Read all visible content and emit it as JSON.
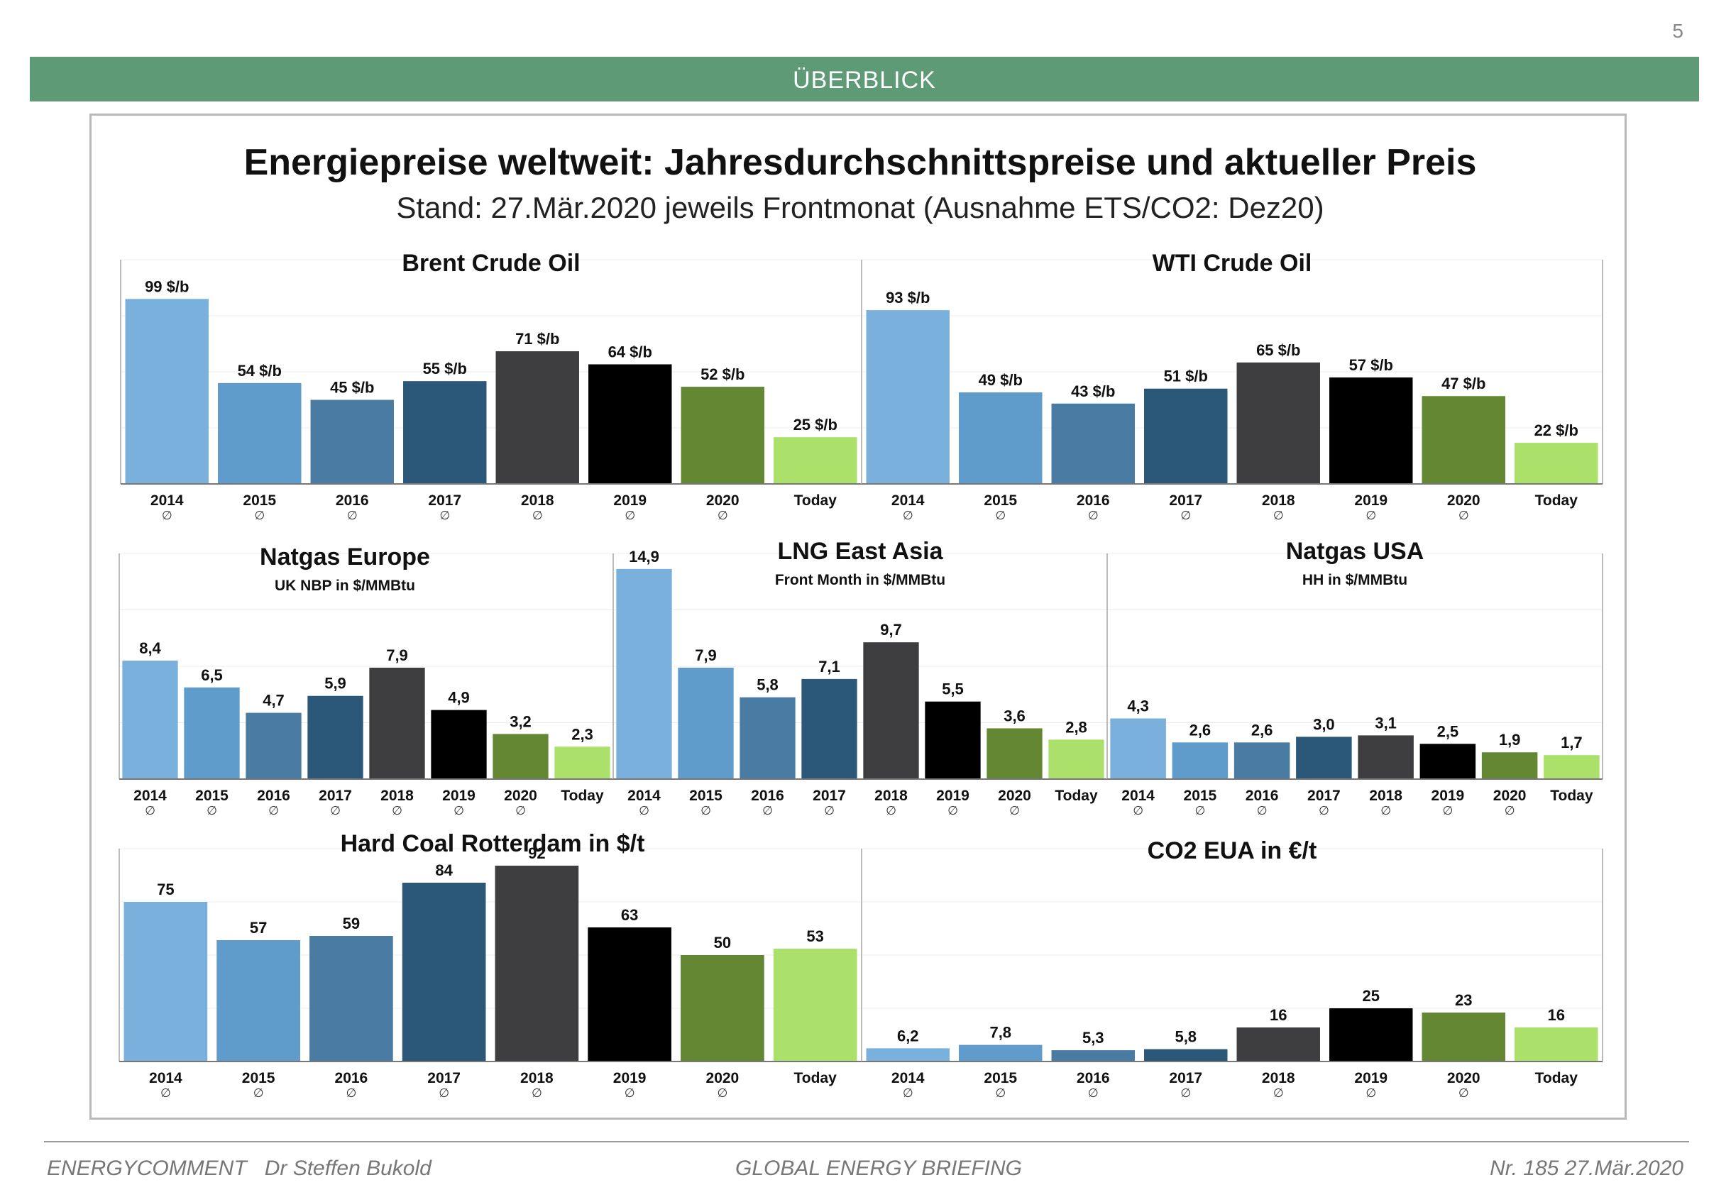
{
  "page_number": "5",
  "banner": "ÜBERBLICK",
  "title": "Energiepreise weltweit: Jahresdurchschnittspreise und aktueller Preis",
  "subtitle": "Stand: 27.Mär.2020 jeweils Frontmonat (Ausnahme ETS/CO2: Dez20)",
  "footer": {
    "left_brand": "ENERGYCOMMENT",
    "left_author": "Dr Steffen Bukold",
    "center": "GLOBAL ENERGY BRIEFING",
    "right": "Nr. 185 27.Mär.2020"
  },
  "colors": [
    "#79b0dc",
    "#5f9bcb",
    "#4a7ca3",
    "#2b5878",
    "#3e3e40",
    "#000000",
    "#648734",
    "#abe06a"
  ],
  "average_symbol": "∅",
  "chart_data": [
    {
      "type": "bar",
      "title": "Brent Crude Oil",
      "subtitle": "",
      "categories": [
        "2014",
        "2015",
        "2016",
        "2017",
        "2018",
        "2019",
        "2020",
        "Today"
      ],
      "values": [
        99,
        54,
        45,
        55,
        71,
        64,
        52,
        25
      ],
      "labels": [
        "99 $/b",
        "54 $/b",
        "45 $/b",
        "55 $/b",
        "71 $/b",
        "64 $/b",
        "52 $/b",
        "25 $/b"
      ],
      "ylim": [
        0,
        120
      ]
    },
    {
      "type": "bar",
      "title": "WTI Crude Oil",
      "subtitle": "",
      "categories": [
        "2014",
        "2015",
        "2016",
        "2017",
        "2018",
        "2019",
        "2020",
        "Today"
      ],
      "values": [
        93,
        49,
        43,
        51,
        65,
        57,
        47,
        22
      ],
      "labels": [
        "93 $/b",
        "49 $/b",
        "43 $/b",
        "51 $/b",
        "65 $/b",
        "57 $/b",
        "47 $/b",
        "22 $/b"
      ],
      "ylim": [
        0,
        120
      ]
    },
    {
      "type": "bar",
      "title": "Natgas Europe",
      "subtitle": "UK NBP in $/MMBtu",
      "categories": [
        "2014",
        "2015",
        "2016",
        "2017",
        "2018",
        "2019",
        "2020",
        "Today"
      ],
      "values": [
        8.4,
        6.5,
        4.7,
        5.9,
        7.9,
        4.9,
        3.2,
        2.3
      ],
      "labels": [
        "8,4",
        "6,5",
        "4,7",
        "5,9",
        "7,9",
        "4,9",
        "3,2",
        "2,3"
      ],
      "ylim": [
        0,
        16
      ]
    },
    {
      "type": "bar",
      "title": "LNG East Asia",
      "subtitle": "Front Month in $/MMBtu",
      "categories": [
        "2014",
        "2015",
        "2016",
        "2017",
        "2018",
        "2019",
        "2020",
        "Today"
      ],
      "values": [
        14.9,
        7.9,
        5.8,
        7.1,
        9.7,
        5.5,
        3.6,
        2.8
      ],
      "labels": [
        "14,9",
        "7,9",
        "5,8",
        "7,1",
        "9,7",
        "5,5",
        "3,6",
        "2,8"
      ],
      "ylim": [
        0,
        16
      ]
    },
    {
      "type": "bar",
      "title": "Natgas USA",
      "subtitle": "HH in $/MMBtu",
      "categories": [
        "2014",
        "2015",
        "2016",
        "2017",
        "2018",
        "2019",
        "2020",
        "Today"
      ],
      "values": [
        4.3,
        2.6,
        2.6,
        3.0,
        3.1,
        2.5,
        1.9,
        1.7
      ],
      "labels": [
        "4,3",
        "2,6",
        "2,6",
        "3,0",
        "3,1",
        "2,5",
        "1,9",
        "1,7"
      ],
      "ylim": [
        0,
        16
      ]
    },
    {
      "type": "bar",
      "title": "Hard Coal Rotterdam in $/t",
      "subtitle": "",
      "categories": [
        "2014",
        "2015",
        "2016",
        "2017",
        "2018",
        "2019",
        "2020",
        "Today"
      ],
      "values": [
        75,
        57,
        59,
        84,
        92,
        63,
        50,
        53
      ],
      "labels": [
        "75",
        "57",
        "59",
        "84",
        "92",
        "63",
        "50",
        "53"
      ],
      "ylim": [
        0,
        100
      ]
    },
    {
      "type": "bar",
      "title": "CO2 EUA in €/t",
      "subtitle": "",
      "categories": [
        "2014",
        "2015",
        "2016",
        "2017",
        "2018",
        "2019",
        "2020",
        "Today"
      ],
      "values": [
        6.2,
        7.8,
        5.3,
        5.8,
        16,
        25,
        23,
        16
      ],
      "labels": [
        "6,2",
        "7,8",
        "5,3",
        "5,8",
        "16",
        "25",
        "23",
        "16"
      ],
      "ylim": [
        0,
        100
      ]
    }
  ]
}
